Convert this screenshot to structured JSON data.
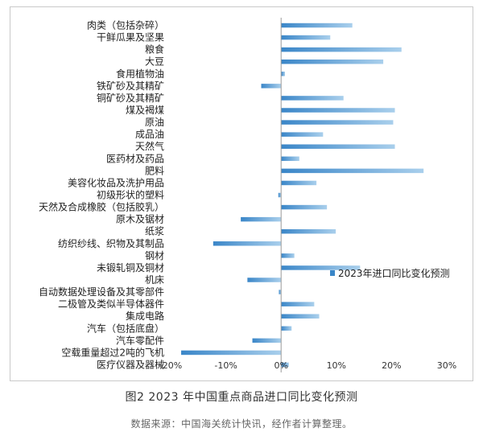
{
  "caption": "图2  2023 年中国重点商品进口同比变化预测",
  "source": "数据来源：中国海关统计快讯，经作者计算整理。",
  "chart_data": {
    "type": "bar",
    "orientation": "horizontal",
    "categories": [
      "肉类（包括杂碎）",
      "干鲜瓜果及坚果",
      "粮食",
      "大豆",
      "食用植物油",
      "铁矿砂及其精矿",
      "铜矿砂及其精矿",
      "煤及褐煤",
      "原油",
      "成品油",
      "天然气",
      "医药材及药品",
      "肥料",
      "美容化妆品及洗护用品",
      "初级形状的塑料",
      "天然及合成橡胶（包括胶乳）",
      "原木及锯材",
      "纸浆",
      "纺织纱线、织物及其制品",
      "钢材",
      "未锻轧铜及铜材",
      "机床",
      "自动数据处理设备及其零部件",
      "二极管及类似半导体器件",
      "集成电路",
      "汽车（包括底盘）",
      "汽车零配件",
      "空载重量超过2吨的飞机",
      "医疗仪器及器械"
    ],
    "series": [
      {
        "name": "2023年进口同比变化预测",
        "values": [
          12.9,
          8.9,
          21.8,
          18.5,
          0.7,
          -3.6,
          11.3,
          20.6,
          20.3,
          7.6,
          20.6,
          3.3,
          25.8,
          6.4,
          -0.5,
          8.3,
          -7.3,
          9.9,
          -12.3,
          2.4,
          14.3,
          -6.1,
          -0.4,
          6.0,
          6.9,
          1.9,
          -5.2,
          -18.1,
          1.4
        ]
      }
    ],
    "xlim": [
      -20,
      30
    ],
    "xticks": [
      -20,
      -10,
      0,
      10,
      20,
      30
    ],
    "xtick_labels": [
      "-20%",
      "-10%",
      "0%",
      "10%",
      "20%",
      "30%"
    ],
    "legend_position": "right",
    "grid": false,
    "colors": {
      "bar_dark": "#3a86c8",
      "bar_light": "#a9cfec",
      "axis": "#999999"
    }
  }
}
